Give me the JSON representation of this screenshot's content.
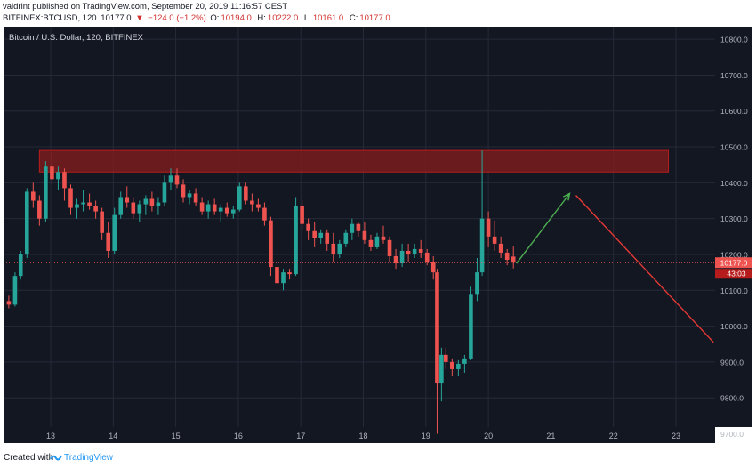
{
  "header": {
    "author": "valdrint",
    "published_text": "published on TradingView.com, September 20, 2019 11:16:57 CEST",
    "symbol": "BITFINEX:BTCUSD, 120",
    "last": "10177.0",
    "change": "−124.0 (−1.2%)",
    "o_label": "O:",
    "o_value": "10194.0",
    "h_label": "H:",
    "h_value": "10222.0",
    "l_label": "L:",
    "l_value": "10161.0",
    "c_label": "C:",
    "c_value": "10177.0"
  },
  "footer": {
    "created_with": "Created with",
    "brand": "TradingView"
  },
  "colors": {
    "background": "#131722",
    "grid": "#262a38",
    "up": "#26a69a",
    "down": "#ef5350",
    "resistance_zone": "#7a1c1c",
    "price_line": "#ef5350",
    "projection_up": "#4caf50",
    "projection_down": "#e53935",
    "axis_text": "#b2b5be"
  },
  "chart_data": {
    "type": "candlestick",
    "title": "Bitcoin / U.S. Dollar, 120, BITFINEX",
    "ylim": [
      9690,
      10800
    ],
    "xlim": [
      12.3,
      23.6
    ],
    "y_ticks": [
      9700,
      9800,
      9900,
      10000,
      10100,
      10200,
      10300,
      10400,
      10500,
      10600,
      10700,
      10800
    ],
    "y_tick_labels": [
      "9700.0",
      "9800.0",
      "9900.0",
      "10000.0",
      "10100.0",
      "10200.0",
      "10300.0",
      "10400.0",
      "10500.0",
      "10600.0",
      "10700.0",
      "10800.0"
    ],
    "x_ticks": [
      13,
      14,
      15,
      16,
      17,
      18,
      19,
      20,
      21,
      22,
      23
    ],
    "x_tick_labels": [
      "13",
      "14",
      "15",
      "16",
      "17",
      "18",
      "19",
      "20",
      "21",
      "22",
      "23"
    ],
    "last_price": 10177.0,
    "last_price_label": "10177.0",
    "countdown_label": "43:03",
    "resistance_zone": {
      "x_start": 12.82,
      "x_end": 22.88,
      "y_low": 10430,
      "y_high": 10490
    },
    "projection": [
      {
        "from": [
          20.45,
          10175
        ],
        "to": [
          21.3,
          10370
        ],
        "direction": "up"
      },
      {
        "from": [
          21.4,
          10365
        ],
        "to": [
          23.6,
          9955
        ],
        "direction": "down"
      }
    ],
    "candles": [
      [
        12.33,
        10070,
        10085,
        10050,
        10060
      ],
      [
        12.43,
        10060,
        10150,
        10055,
        10140
      ],
      [
        12.52,
        10140,
        10210,
        10130,
        10200
      ],
      [
        12.62,
        10200,
        10385,
        10190,
        10375
      ],
      [
        12.72,
        10375,
        10400,
        10330,
        10350
      ],
      [
        12.82,
        10350,
        10365,
        10280,
        10300
      ],
      [
        12.92,
        10300,
        10460,
        10290,
        10445
      ],
      [
        13.02,
        10445,
        10485,
        10395,
        10410
      ],
      [
        13.12,
        10410,
        10445,
        10380,
        10430
      ],
      [
        13.22,
        10430,
        10440,
        10350,
        10385
      ],
      [
        13.32,
        10385,
        10395,
        10310,
        10330
      ],
      [
        13.42,
        10330,
        10355,
        10300,
        10340
      ],
      [
        13.52,
        10340,
        10380,
        10320,
        10345
      ],
      [
        13.62,
        10345,
        10370,
        10325,
        10335
      ],
      [
        13.72,
        10335,
        10350,
        10300,
        10320
      ],
      [
        13.82,
        10320,
        10330,
        10240,
        10260
      ],
      [
        13.92,
        10260,
        10290,
        10190,
        10210
      ],
      [
        14.02,
        10210,
        10330,
        10200,
        10310
      ],
      [
        14.12,
        10310,
        10375,
        10300,
        10360
      ],
      [
        14.22,
        10360,
        10390,
        10330,
        10345
      ],
      [
        14.32,
        10345,
        10360,
        10300,
        10315
      ],
      [
        14.42,
        10315,
        10350,
        10290,
        10340
      ],
      [
        14.52,
        10340,
        10365,
        10310,
        10355
      ],
      [
        14.62,
        10355,
        10375,
        10320,
        10335
      ],
      [
        14.72,
        10335,
        10360,
        10310,
        10345
      ],
      [
        14.82,
        10345,
        10420,
        10335,
        10400
      ],
      [
        14.92,
        10400,
        10440,
        10380,
        10420
      ],
      [
        15.02,
        10420,
        10440,
        10385,
        10395
      ],
      [
        15.12,
        10395,
        10410,
        10345,
        10360
      ],
      [
        15.22,
        10360,
        10380,
        10340,
        10370
      ],
      [
        15.32,
        10370,
        10385,
        10335,
        10345
      ],
      [
        15.42,
        10345,
        10360,
        10310,
        10320
      ],
      [
        15.52,
        10320,
        10350,
        10300,
        10340
      ],
      [
        15.62,
        10340,
        10355,
        10310,
        10320
      ],
      [
        15.72,
        10320,
        10340,
        10290,
        10330
      ],
      [
        15.82,
        10330,
        10345,
        10305,
        10315
      ],
      [
        15.92,
        10315,
        10335,
        10300,
        10325
      ],
      [
        16.02,
        10325,
        10400,
        10320,
        10390
      ],
      [
        16.12,
        10390,
        10400,
        10340,
        10350
      ],
      [
        16.22,
        10350,
        10370,
        10320,
        10340
      ],
      [
        16.32,
        10340,
        10355,
        10320,
        10330
      ],
      [
        16.42,
        10330,
        10345,
        10280,
        10295
      ],
      [
        16.52,
        10295,
        10305,
        10140,
        10165
      ],
      [
        16.62,
        10165,
        10185,
        10100,
        10120
      ],
      [
        16.72,
        10120,
        10160,
        10100,
        10150
      ],
      [
        16.82,
        10150,
        10160,
        10130,
        10145
      ],
      [
        16.92,
        10145,
        10360,
        10140,
        10335
      ],
      [
        17.02,
        10335,
        10350,
        10270,
        10285
      ],
      [
        17.12,
        10285,
        10300,
        10240,
        10265
      ],
      [
        17.22,
        10265,
        10290,
        10220,
        10245
      ],
      [
        17.32,
        10245,
        10270,
        10230,
        10260
      ],
      [
        17.42,
        10260,
        10270,
        10210,
        10230
      ],
      [
        17.52,
        10230,
        10260,
        10180,
        10200
      ],
      [
        17.62,
        10200,
        10240,
        10190,
        10230
      ],
      [
        17.72,
        10230,
        10270,
        10220,
        10260
      ],
      [
        17.82,
        10260,
        10300,
        10240,
        10285
      ],
      [
        17.92,
        10285,
        10290,
        10250,
        10265
      ],
      [
        18.02,
        10265,
        10290,
        10230,
        10240
      ],
      [
        18.12,
        10240,
        10255,
        10210,
        10220
      ],
      [
        18.22,
        10220,
        10260,
        10215,
        10250
      ],
      [
        18.32,
        10250,
        10280,
        10230,
        10240
      ],
      [
        18.42,
        10240,
        10250,
        10180,
        10195
      ],
      [
        18.52,
        10195,
        10215,
        10160,
        10175
      ],
      [
        18.62,
        10175,
        10230,
        10165,
        10210
      ],
      [
        18.72,
        10210,
        10230,
        10180,
        10200
      ],
      [
        18.82,
        10200,
        10230,
        10190,
        10215
      ],
      [
        18.92,
        10215,
        10240,
        10190,
        10205
      ],
      [
        19.02,
        10205,
        10215,
        10170,
        10180
      ],
      [
        19.12,
        10180,
        10195,
        10130,
        10150
      ],
      [
        19.18,
        10150,
        10160,
        9700,
        9840
      ],
      [
        19.25,
        9840,
        9940,
        9790,
        9920
      ],
      [
        19.32,
        9920,
        9940,
        9880,
        9900
      ],
      [
        19.42,
        9900,
        9910,
        9860,
        9880
      ],
      [
        19.52,
        9880,
        9905,
        9860,
        9895
      ],
      [
        19.62,
        9895,
        9920,
        9870,
        9910
      ],
      [
        19.72,
        9910,
        10110,
        9905,
        10090
      ],
      [
        19.82,
        10090,
        10190,
        10070,
        10150
      ],
      [
        19.9,
        10150,
        10490,
        10140,
        10300
      ],
      [
        20.0,
        10300,
        10320,
        10220,
        10250
      ],
      [
        20.1,
        10250,
        10295,
        10210,
        10230
      ],
      [
        20.2,
        10230,
        10250,
        10190,
        10205
      ],
      [
        20.3,
        10205,
        10215,
        10170,
        10185
      ],
      [
        20.4,
        10194,
        10222,
        10161,
        10177
      ]
    ]
  }
}
